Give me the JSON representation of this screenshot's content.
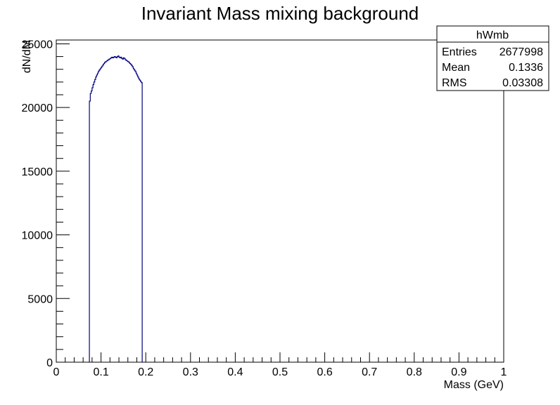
{
  "chart_data": {
    "type": "histogram",
    "title": "Invariant Mass mixing background",
    "xlabel": "Mass (GeV)",
    "ylabel": "dN/dM",
    "xlim": [
      0,
      1
    ],
    "ylim": [
      0,
      25300
    ],
    "x_ticks": [
      0,
      0.1,
      0.2,
      0.3,
      0.4,
      0.5,
      0.6,
      0.7,
      0.8,
      0.9,
      1
    ],
    "x_tick_labels": [
      "0",
      "0.1",
      "0.2",
      "0.3",
      "0.4",
      "0.5",
      "0.6",
      "0.7",
      "0.8",
      "0.9",
      "1"
    ],
    "y_ticks": [
      0,
      5000,
      10000,
      15000,
      20000,
      25000
    ],
    "y_tick_labels": [
      "0",
      "5000",
      "10000",
      "15000",
      "20000",
      "25000"
    ],
    "grid": false,
    "line_color": "#000080",
    "bin_width": 0.002,
    "bin_start": 0.074,
    "bin_values": [
      20500,
      21100,
      21300,
      21550,
      21800,
      22000,
      22200,
      22400,
      22550,
      22700,
      22850,
      22950,
      23050,
      23150,
      23250,
      23350,
      23450,
      23550,
      23600,
      23650,
      23700,
      23750,
      23800,
      23850,
      23900,
      23950,
      23900,
      23950,
      24000,
      23950,
      23900,
      24000,
      24050,
      23950,
      23900,
      23950,
      23850,
      23800,
      23900,
      23850,
      23750,
      23700,
      23650,
      23600,
      23550,
      23450,
      23400,
      23300,
      23200,
      23050,
      22950,
      22850,
      22700,
      22550,
      22400,
      22250,
      22150,
      22050,
      21950
    ],
    "stats_box": {
      "name": "hWmb",
      "rows": [
        {
          "label": "Entries",
          "value": "2677998"
        },
        {
          "label": "Mean",
          "value": "0.1336"
        },
        {
          "label": "RMS",
          "value": "0.03308"
        }
      ]
    }
  }
}
